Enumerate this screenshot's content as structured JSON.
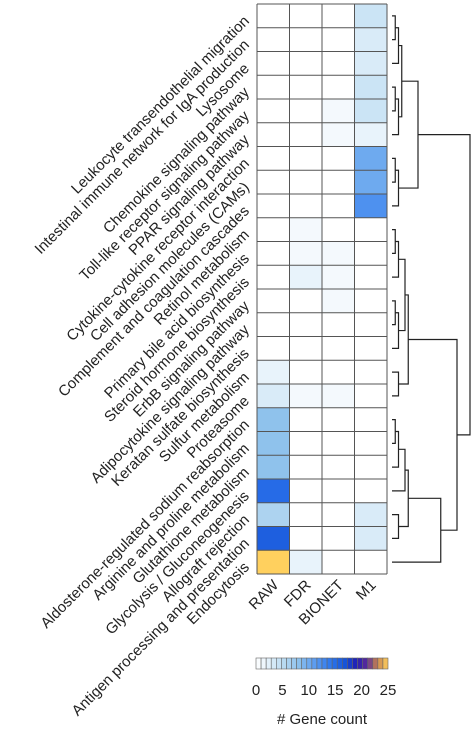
{
  "chart_data": {
    "type": "heatmap",
    "title": "",
    "columns": [
      "RAW",
      "FDR",
      "BIONET",
      "M1"
    ],
    "rows": [
      "Leukocyte transendothelial migration",
      "Intestinal immune network for IgA production",
      "Lysosome",
      "Chemokine signaling pathway",
      "Toll-like receptor signaling pathway",
      "PPAR signaling pathway",
      "Cytokine-cytokine receptor interaction",
      "Cell adhesion molecules (CAMs)",
      "Complement and coagulation cascades",
      "Retinol metabolism",
      "Primary bile acid biosynthesis",
      "Steroid hormone biosynthesis",
      "ErbB signaling pathway",
      "Adipocytokine signaling pathway",
      "Keratan sulfate biosynthesis",
      "Sulfur metabolism",
      "Proteasome",
      "Aldosterone-regulated sodium reabsorption",
      "Arginine and proline metabolism",
      "Glutathione metabolism",
      "Glycolysis / Gluconeogenesis",
      "Allograft rejection",
      "Antigen processing and presentation",
      "Endocytosis"
    ],
    "values": [
      [
        0,
        0,
        0,
        4
      ],
      [
        0,
        0,
        0,
        3
      ],
      [
        0,
        0,
        0,
        3
      ],
      [
        0,
        0,
        0,
        4
      ],
      [
        0,
        0,
        1,
        4
      ],
      [
        0,
        0,
        1,
        2
      ],
      [
        0,
        0,
        0,
        10
      ],
      [
        0,
        0,
        0,
        10
      ],
      [
        0,
        0,
        0,
        12
      ],
      [
        0,
        1,
        0,
        0
      ],
      [
        0,
        1,
        1,
        0
      ],
      [
        0,
        2,
        1,
        0
      ],
      [
        0,
        0,
        1,
        0
      ],
      [
        0,
        0,
        0,
        0
      ],
      [
        0,
        0,
        0,
        0
      ],
      [
        2,
        0,
        0,
        0
      ],
      [
        3,
        1,
        1,
        0
      ],
      [
        8,
        0,
        0,
        0
      ],
      [
        8,
        0,
        0,
        0
      ],
      [
        8,
        0,
        0,
        0
      ],
      [
        15,
        0,
        0,
        0
      ],
      [
        6,
        0,
        0,
        3
      ],
      [
        16,
        0,
        0,
        3
      ],
      [
        25,
        2,
        0,
        0
      ]
    ],
    "colorbar": {
      "label": "# Gene count",
      "ticks": [
        0,
        5,
        10,
        15,
        20,
        25
      ],
      "range": [
        0,
        25
      ],
      "stops": [
        {
          "v": 0,
          "c": "#ffffff"
        },
        {
          "v": 2,
          "c": "#e8f3fb"
        },
        {
          "v": 5,
          "c": "#bcdcf2"
        },
        {
          "v": 8,
          "c": "#8fc2ec"
        },
        {
          "v": 11,
          "c": "#5e9ef0"
        },
        {
          "v": 14,
          "c": "#2f78ee"
        },
        {
          "v": 17,
          "c": "#1552d8"
        },
        {
          "v": 19,
          "c": "#1f1fb5"
        },
        {
          "v": 21,
          "c": "#5a2a9a"
        },
        {
          "v": 23,
          "c": "#c8844e"
        },
        {
          "v": 25,
          "c": "#ffd05e"
        }
      ]
    },
    "dendrogram": {
      "orientation": "right",
      "merges": [
        [
          0,
          1,
          1
        ],
        [
          24,
          2,
          2
        ],
        [
          3,
          4,
          1
        ],
        [
          26,
          5,
          2
        ],
        [
          25,
          27,
          3
        ],
        [
          6,
          7,
          1
        ],
        [
          29,
          8,
          2
        ],
        [
          28,
          30,
          8
        ],
        [
          9,
          10,
          1
        ],
        [
          32,
          11,
          2
        ],
        [
          12,
          13,
          1
        ],
        [
          34,
          14,
          2
        ],
        [
          33,
          35,
          4
        ],
        [
          15,
          16,
          2
        ],
        [
          36,
          37,
          5
        ],
        [
          17,
          18,
          1
        ],
        [
          39,
          19,
          2
        ],
        [
          40,
          20,
          4
        ],
        [
          21,
          22,
          2
        ],
        [
          42,
          41,
          5
        ],
        [
          43,
          23,
          15
        ],
        [
          38,
          44,
          20
        ],
        [
          31,
          45,
          24
        ]
      ]
    }
  }
}
